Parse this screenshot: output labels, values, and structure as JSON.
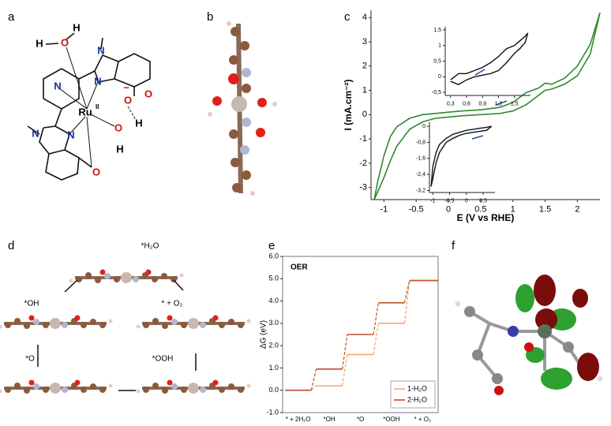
{
  "panels": [
    "a",
    "b",
    "c",
    "d",
    "e",
    "f"
  ],
  "panel_a": {
    "atoms": [
      "H",
      "H",
      "O",
      "N",
      "N",
      "N",
      "Ru",
      "II",
      "−",
      "O",
      "O",
      "H",
      "O",
      "H",
      "N",
      "N",
      "O"
    ]
  },
  "panel_d": {
    "states": [
      "*H₂O",
      "*OH",
      "* + O₂",
      "*O",
      "*OOH"
    ]
  },
  "chart_data": [
    {
      "type": "line",
      "xlabel": "E (V vs RHE)",
      "ylabel": "I (mA.cm⁻²)",
      "x": [
        -1.15,
        -1.1,
        -1,
        -0.9,
        -0.8,
        -0.6,
        -0.4,
        -0.2,
        0,
        0.2,
        0.5,
        0.8,
        1,
        1.2,
        1.4,
        1.5,
        1.6,
        1.8,
        2,
        2.2,
        2.35
      ],
      "series": [
        {
          "color": "#2e8b2e",
          "values": [
            -3.5,
            -2.8,
            -1.7,
            -0.9,
            -0.5,
            -0.15,
            0,
            0.05,
            0.1,
            0.15,
            0.2,
            0.3,
            0.5,
            0.9,
            1.1,
            1.3,
            1.25,
            1.5,
            2,
            2.9,
            4.2
          ]
        },
        {
          "color": "#2e8b2e",
          "values": [
            -3.5,
            -3.2,
            -2.6,
            -1.9,
            -1.3,
            -0.6,
            -0.3,
            -0.15,
            -0.1,
            -0.05,
            0,
            0.05,
            0.15,
            0.4,
            0.8,
            1.0,
            1.05,
            1.25,
            1.6,
            2.5,
            4.2
          ]
        }
      ],
      "xlim": [
        -1.2,
        2.35
      ],
      "ylim": [
        -3.5,
        4.3
      ],
      "xticks": [
        -1,
        -0.5,
        0,
        0.5,
        1,
        1.5,
        2
      ],
      "yticks": [
        -3,
        -2,
        -1,
        0,
        1,
        2,
        3,
        4
      ]
    },
    {
      "type": "line",
      "x": [
        0.3,
        0.45,
        0.6,
        0.75,
        0.9,
        1.05,
        1.2,
        1.35,
        1.5,
        1.6,
        1.7,
        1.75
      ],
      "series": [
        {
          "color": "#111111",
          "values": [
            -0.1,
            0.1,
            0.1,
            0.2,
            0.3,
            0.45,
            0.65,
            0.9,
            1.0,
            1.15,
            1.3,
            1.4
          ]
        },
        {
          "color": "#111111",
          "values": [
            -0.15,
            -0.25,
            -0.1,
            0,
            0.05,
            0.1,
            0.2,
            0.45,
            0.75,
            0.9,
            1.1,
            1.4
          ]
        }
      ],
      "xlim": [
        0.2,
        1.8
      ],
      "ylim": [
        -0.6,
        1.6
      ],
      "xticks": [
        {
          "value": 0.3,
          "label": "0,3"
        },
        {
          "value": 0.6,
          "label": "0,6"
        },
        {
          "value": 0.9,
          "label": "0,9"
        },
        {
          "value": 1.2,
          "label": "1,2"
        },
        {
          "value": 1.5,
          "label": "1,5"
        }
      ],
      "yticks": [
        {
          "value": -0.5,
          "label": "-0,5"
        },
        0,
        {
          "value": 0.5,
          "label": "0,5"
        },
        1,
        {
          "value": 1.5,
          "label": "1,5"
        }
      ]
    },
    {
      "type": "line",
      "x": [
        -1.05,
        -1,
        -0.9,
        -0.8,
        -0.6,
        -0.4,
        -0.2,
        0,
        0.2,
        0.4,
        0.6,
        0.75
      ],
      "series": [
        {
          "color": "#111111",
          "values": [
            -3.0,
            -2.0,
            -1.3,
            -0.9,
            -0.6,
            -0.4,
            -0.3,
            -0.2,
            -0.15,
            -0.1,
            -0.05,
            0
          ]
        },
        {
          "color": "#111111",
          "values": [
            -3.0,
            -2.6,
            -1.8,
            -1.3,
            -0.8,
            -0.6,
            -0.45,
            -0.35,
            -0.3,
            -0.25,
            -0.2,
            0
          ]
        }
      ],
      "xlim": [
        -1.1,
        0.85
      ],
      "ylim": [
        -3.3,
        0.2
      ],
      "xticks": [
        -1,
        {
          "value": -0.5,
          "label": "-0,5"
        },
        0,
        {
          "value": 0.5,
          "label": "0,5"
        }
      ],
      "yticks": [
        0,
        {
          "value": -0.8,
          "label": "-0,8"
        },
        {
          "value": -1.6,
          "label": "-1,6"
        },
        {
          "value": -2.4,
          "label": "-2,4"
        },
        {
          "value": -3.2,
          "label": "-3,2"
        }
      ]
    },
    {
      "type": "step",
      "title": "OER",
      "ylabel": "ΔG (eV)",
      "categories": [
        "* + 2H₂O",
        "*OH",
        "*O",
        "*OOH",
        "* + O₂"
      ],
      "series": [
        {
          "name": "1-H₂O",
          "color": "#f0a878",
          "values": [
            0,
            0.2,
            1.6,
            3.0,
            4.92
          ]
        },
        {
          "name": "2-H₂O",
          "color": "#c0502a",
          "values": [
            0,
            0.95,
            2.5,
            3.92,
            4.92
          ]
        }
      ],
      "ylim": [
        -1,
        6
      ],
      "yticks": [
        {
          "value": -1,
          "label": "-1.0"
        },
        {
          "value": 0,
          "label": "0.0"
        },
        {
          "value": 1,
          "label": "1.0"
        },
        {
          "value": 2,
          "label": "2.0"
        },
        {
          "value": 3,
          "label": "3.0"
        },
        {
          "value": 4,
          "label": "4.0"
        },
        {
          "value": 5,
          "label": "5.0"
        },
        {
          "value": 6,
          "label": "6.0"
        }
      ],
      "legend": "lower right"
    }
  ]
}
